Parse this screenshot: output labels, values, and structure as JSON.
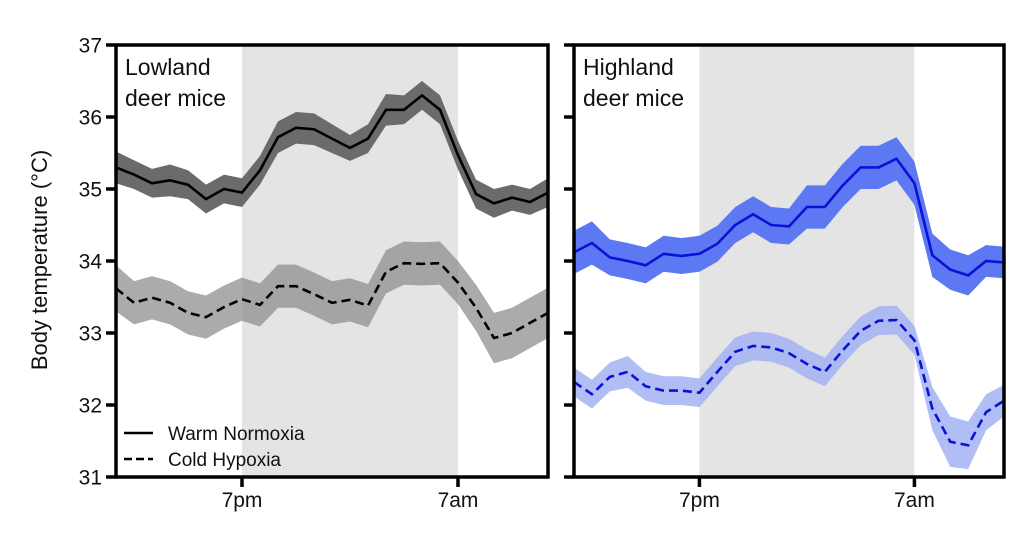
{
  "chart_data": [
    {
      "type": "line",
      "title": "Lowland deer mice",
      "title_lines": [
        "Lowland",
        "deer mice"
      ],
      "xlabel": "",
      "ylabel": "Body temperature (°C)",
      "ylim": [
        31,
        37
      ],
      "yticks": [
        31,
        32,
        33,
        34,
        35,
        36,
        37
      ],
      "x_hours_start": 12,
      "x_hours": [
        12,
        13,
        14,
        15,
        16,
        17,
        18,
        19,
        20,
        21,
        22,
        23,
        24,
        25,
        26,
        27,
        28,
        29,
        30,
        31,
        32,
        33,
        34,
        35,
        36
      ],
      "xlim": [
        12,
        36
      ],
      "xticks": [
        {
          "hour": 19,
          "label": "7pm"
        },
        {
          "hour": 31,
          "label": "7am"
        }
      ],
      "dark_phase": [
        19,
        31
      ],
      "legend": {
        "placement": "bottom-left",
        "entries": [
          "Warm Normoxia",
          "Cold Hypoxia"
        ]
      },
      "series": [
        {
          "name": "Warm Normoxia",
          "style": "solid",
          "line_color": "#000000",
          "band_color": "#6b6b6b",
          "values": [
            35.3,
            35.2,
            35.08,
            35.12,
            35.06,
            34.86,
            35.0,
            34.95,
            35.26,
            35.72,
            35.85,
            35.83,
            35.7,
            35.57,
            35.7,
            36.1,
            36.1,
            36.3,
            36.1,
            35.47,
            34.93,
            34.8,
            34.88,
            34.82,
            34.95
          ],
          "error": [
            0.22,
            0.2,
            0.2,
            0.22,
            0.2,
            0.2,
            0.2,
            0.2,
            0.2,
            0.22,
            0.22,
            0.22,
            0.2,
            0.18,
            0.2,
            0.22,
            0.2,
            0.2,
            0.2,
            0.2,
            0.2,
            0.2,
            0.18,
            0.18,
            0.2
          ]
        },
        {
          "name": "Cold Hypoxia",
          "style": "dashed",
          "line_color": "#000000",
          "band_color": "#8a8a8a",
          "values": [
            33.62,
            33.42,
            33.49,
            33.42,
            33.28,
            33.22,
            33.36,
            33.47,
            33.39,
            33.65,
            33.65,
            33.54,
            33.42,
            33.46,
            33.38,
            33.85,
            33.97,
            33.96,
            33.97,
            33.7,
            33.35,
            32.93,
            33.0,
            33.14,
            33.28
          ],
          "error": [
            0.32,
            0.3,
            0.3,
            0.3,
            0.3,
            0.3,
            0.3,
            0.3,
            0.3,
            0.3,
            0.3,
            0.3,
            0.3,
            0.3,
            0.3,
            0.3,
            0.3,
            0.3,
            0.3,
            0.3,
            0.32,
            0.35,
            0.35,
            0.35,
            0.35
          ]
        }
      ]
    },
    {
      "type": "line",
      "title": "Highland deer mice",
      "title_lines": [
        "Highland",
        "deer mice"
      ],
      "xlabel": "",
      "ylabel": "",
      "ylim": [
        31,
        37
      ],
      "yticks": [
        31,
        32,
        33,
        34,
        35,
        36,
        37
      ],
      "x_hours": [
        12,
        13,
        14,
        15,
        16,
        17,
        18,
        19,
        20,
        21,
        22,
        23,
        24,
        25,
        26,
        27,
        28,
        29,
        30,
        31,
        32,
        33,
        34,
        35,
        36
      ],
      "xlim": [
        12,
        36
      ],
      "xticks": [
        {
          "hour": 19,
          "label": "7pm"
        },
        {
          "hour": 31,
          "label": "7am"
        }
      ],
      "dark_phase": [
        19,
        31
      ],
      "series": [
        {
          "name": "Warm Normoxia",
          "style": "solid",
          "line_color": "#0a12d6",
          "band_color": "#5c78f2",
          "values": [
            34.12,
            34.25,
            34.05,
            34.0,
            33.94,
            34.1,
            34.07,
            34.1,
            34.24,
            34.5,
            34.65,
            34.5,
            34.48,
            34.75,
            34.75,
            35.05,
            35.3,
            35.3,
            35.42,
            35.08,
            34.08,
            33.88,
            33.8,
            34.0,
            33.98
          ],
          "error": [
            0.3,
            0.3,
            0.25,
            0.25,
            0.25,
            0.25,
            0.25,
            0.25,
            0.25,
            0.25,
            0.25,
            0.25,
            0.25,
            0.3,
            0.3,
            0.3,
            0.3,
            0.3,
            0.3,
            0.3,
            0.3,
            0.28,
            0.28,
            0.22,
            0.22
          ]
        },
        {
          "name": "Cold Hypoxia",
          "style": "dashed",
          "line_color": "#0a12d6",
          "band_color": "#a2b3f3",
          "values": [
            32.32,
            32.15,
            32.39,
            32.46,
            32.26,
            32.2,
            32.2,
            32.17,
            32.46,
            32.74,
            32.82,
            32.8,
            32.72,
            32.57,
            32.46,
            32.76,
            33.03,
            33.17,
            33.18,
            32.9,
            31.95,
            31.49,
            31.44,
            31.9,
            32.06
          ],
          "error": [
            0.2,
            0.2,
            0.2,
            0.22,
            0.2,
            0.2,
            0.2,
            0.2,
            0.2,
            0.2,
            0.2,
            0.2,
            0.2,
            0.2,
            0.2,
            0.2,
            0.2,
            0.2,
            0.2,
            0.2,
            0.3,
            0.35,
            0.33,
            0.25,
            0.22
          ]
        }
      ]
    }
  ],
  "colors": {
    "dark_phase_shading": "#e4e4e4",
    "axis": "#000000"
  }
}
